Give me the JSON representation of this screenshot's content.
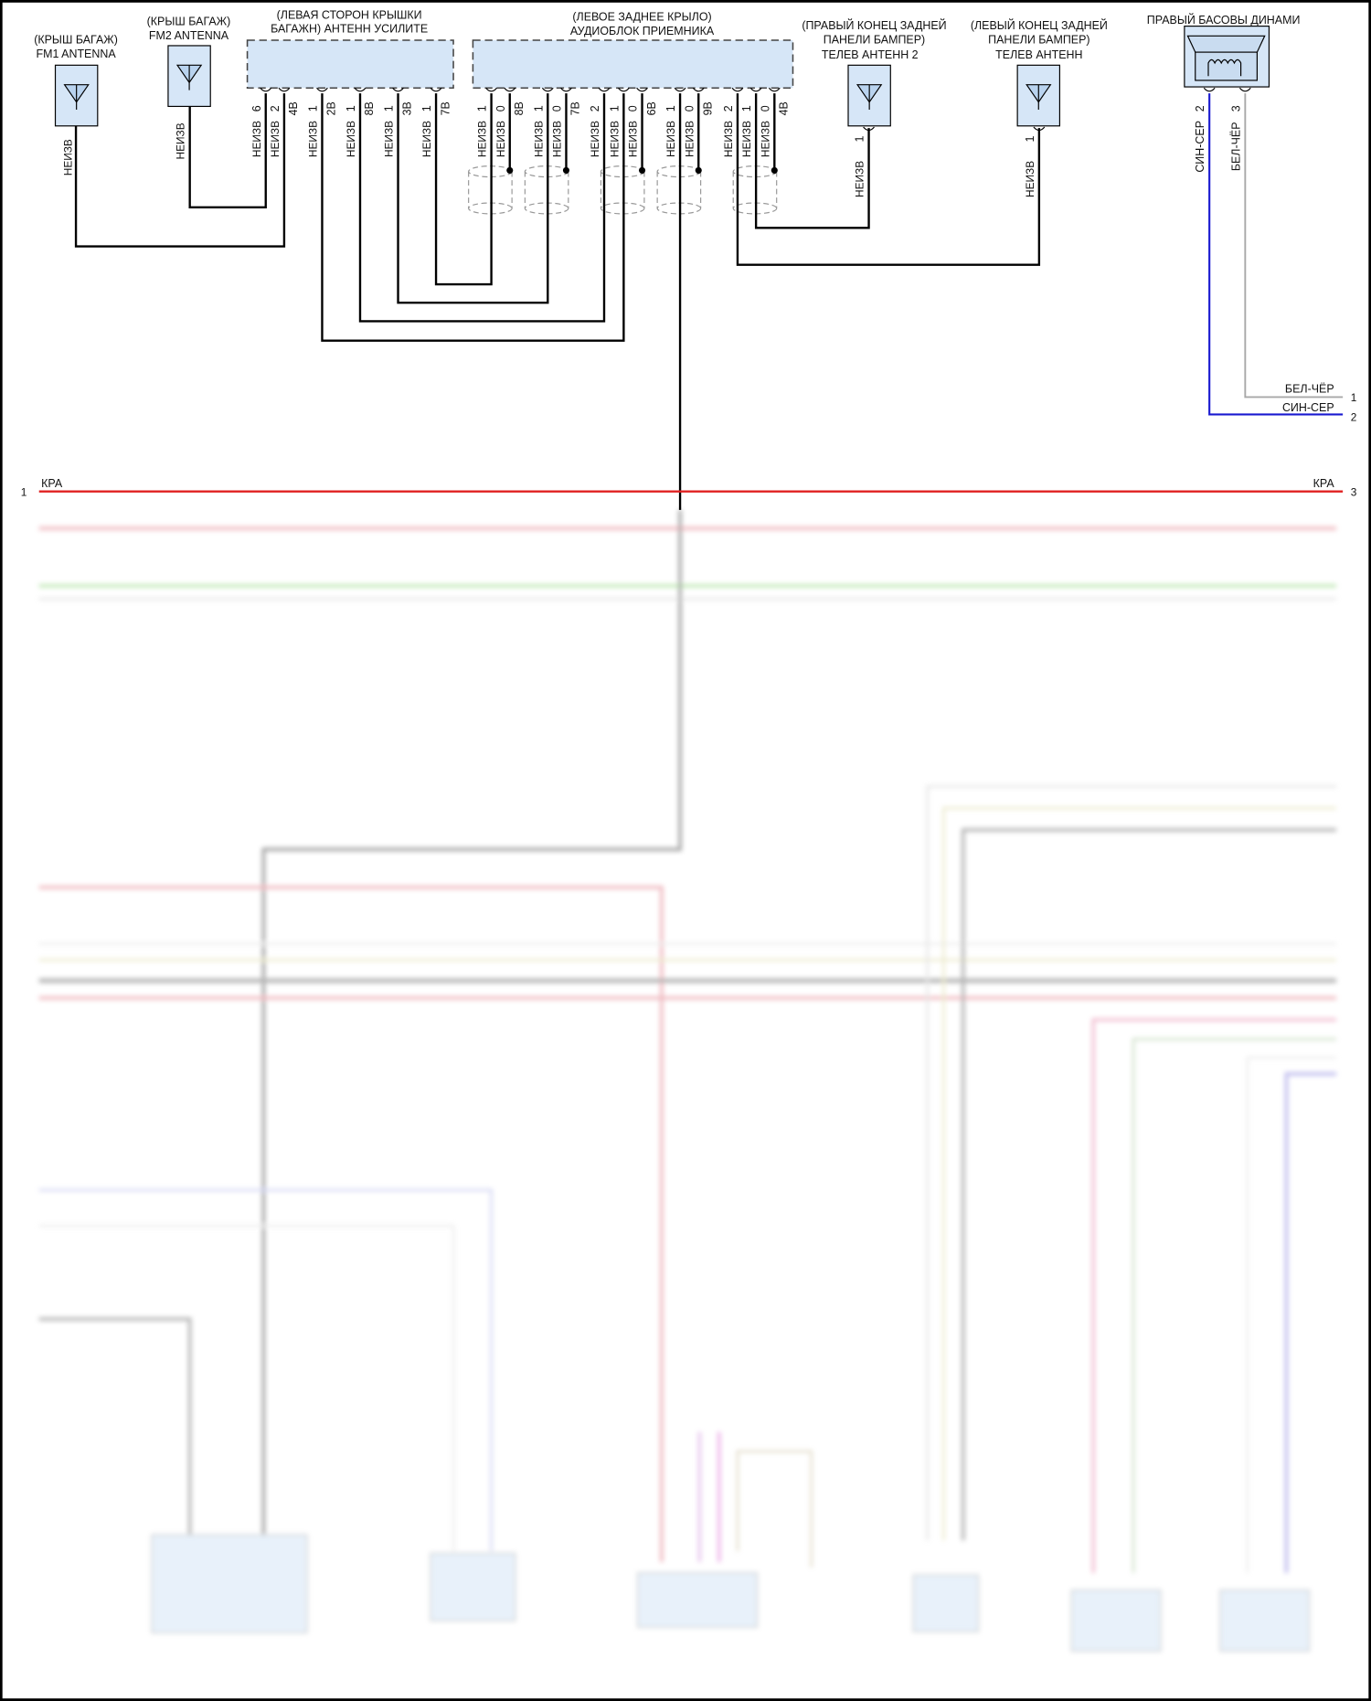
{
  "colors": {
    "component_fill": "#d6e6f7",
    "wire_black": "#000000",
    "wire_red": "#e02020",
    "wire_blue": "#1a1ad0",
    "wire_gray": "#a8a8a8",
    "shield": "#999999"
  },
  "components": {
    "fm1": {
      "line1": "(КРЫШ БАГАЖ)",
      "line2": "FM1 ANTENNA",
      "icon": "antenna-icon",
      "pin_wire": "НЕИЗВ"
    },
    "fm2": {
      "line1": "(КРЫШ БАГАЖ)",
      "line2": "FM2 ANTENNA",
      "icon": "antenna-icon",
      "pin_wire": "НЕИЗВ"
    },
    "amp": {
      "line1": "(ЛЕВАЯ СТОРОН КРЫШКИ",
      "line2": "БАГАЖН) АНТЕНН УСИЛИТЕ"
    },
    "receiver": {
      "line1": "(ЛЕВОЕ ЗАДНЕЕ КРЫЛО)",
      "line2": "АУДИОБЛОК ПРИЕМНИКА"
    },
    "tv2": {
      "line1": "(ПРАВЫЙ КОНЕЦ ЗАДНЕЙ",
      "line2": "ПАНЕЛИ БАМПЕР)",
      "line3": "ТЕЛЕВ АНТЕНН 2",
      "icon": "antenna-icon",
      "pin": "1",
      "pin_wire": "НЕИЗВ"
    },
    "tv1": {
      "line1": "(ЛЕВЫЙ КОНЕЦ ЗАДНЕЙ",
      "line2": "ПАНЕЛИ БАМПЕР)",
      "line3": "ТЕЛЕВ АНТЕНН",
      "icon": "antenna-icon",
      "pin": "1",
      "pin_wire": "НЕИЗВ"
    },
    "speaker": {
      "line1": "ПРАВЫЙ БАСОВЫ ДИНАМИ",
      "icon": "speaker-icon",
      "pins": [
        {
          "num": "2",
          "wire": "СИН-СЕР"
        },
        {
          "num": "3",
          "wire": "БЕЛ-ЧЁР"
        }
      ]
    }
  },
  "amp_pins": [
    {
      "num": "6",
      "wire": "НЕИЗВ"
    },
    {
      "num": "2",
      "wire": "НЕИЗВ",
      "connector": "4В"
    },
    {
      "num": "1",
      "wire": "НЕИЗВ",
      "connector": "2В"
    },
    {
      "num": "1",
      "wire": "НЕИЗВ",
      "connector": "8В"
    },
    {
      "num": "1",
      "wire": "НЕИЗВ",
      "connector": "3В"
    },
    {
      "num": "1",
      "wire": "НЕИЗВ",
      "connector": "7В"
    }
  ],
  "receiver_pins": [
    {
      "num": "1",
      "wire": "НЕИЗВ"
    },
    {
      "num": "0",
      "wire": "НЕИЗВ",
      "connector": "8В"
    },
    {
      "num": "1",
      "wire": "НЕИЗВ"
    },
    {
      "num": "0",
      "wire": "НЕИЗВ",
      "connector": "7В"
    },
    {
      "num": "2",
      "wire": "НЕИЗВ"
    },
    {
      "num": "1",
      "wire": "НЕИЗВ"
    },
    {
      "num": "0",
      "wire": "НЕИЗВ",
      "connector": "6В"
    },
    {
      "num": "1",
      "wire": "НЕИЗВ"
    },
    {
      "num": "0",
      "wire": "НЕИЗВ",
      "connector": "9В"
    },
    {
      "num": "2",
      "wire": "НЕИЗВ"
    },
    {
      "num": "1",
      "wire": "НЕИЗВ"
    },
    {
      "num": "0",
      "wire": "НЕИЗВ",
      "connector": "4В"
    }
  ],
  "right_connector": [
    {
      "wire": "БЕЛ-ЧЁР",
      "num": "1"
    },
    {
      "wire": "СИН-СЕР",
      "num": "2"
    },
    {
      "wire": "КРА",
      "num": "3"
    }
  ],
  "left_connector": [
    {
      "wire": "КРА",
      "num": "1"
    }
  ]
}
